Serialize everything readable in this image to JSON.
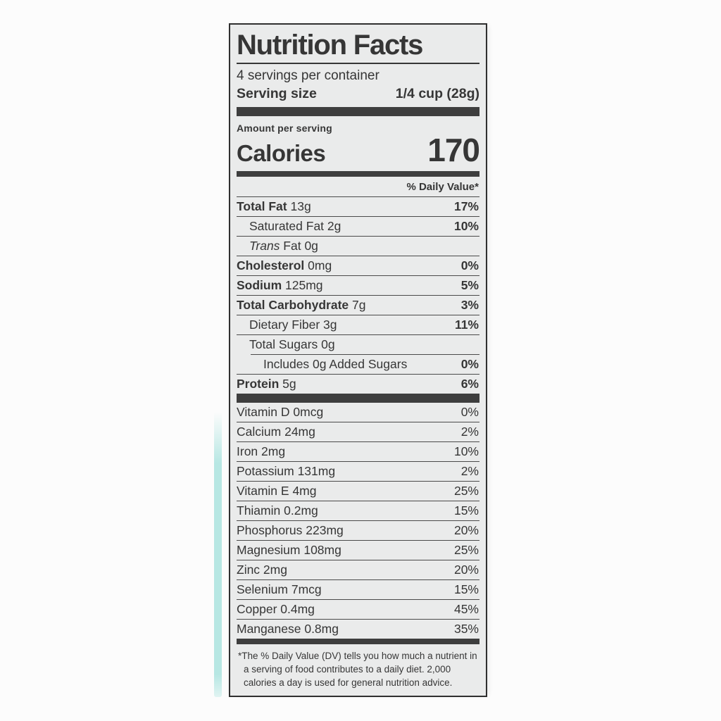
{
  "colors": {
    "page_background": "#fcfcfc",
    "label_background": "#eaebeb",
    "ink": "#363636",
    "rule": "#4a4a4a",
    "package_edge_teal": "#b7e7e3"
  },
  "label": {
    "title": "Nutrition Facts",
    "servings_per_container": "4 servings per container",
    "serving_size": {
      "label": "Serving size",
      "value": "1/4 cup (28g)"
    },
    "amount_per_serving": "Amount per serving",
    "calories": {
      "label": "Calories",
      "value": "170"
    },
    "daily_value_header": "% Daily Value*",
    "nutrients": [
      {
        "name": "Total Fat",
        "amount": "13g",
        "dv": "17%",
        "bold": true,
        "indent": 0
      },
      {
        "name": "Saturated Fat",
        "amount": "2g",
        "dv": "10%",
        "indent": 1
      },
      {
        "name": "Trans",
        "amount": "Fat 0g",
        "dv": "",
        "italic": true,
        "indent": 1
      },
      {
        "name": "Cholesterol",
        "amount": "0mg",
        "dv": "0%",
        "bold": true,
        "indent": 0
      },
      {
        "name": "Sodium",
        "amount": "125mg",
        "dv": "5%",
        "bold": true,
        "indent": 0
      },
      {
        "name": "Total Carbohydrate",
        "amount": "7g",
        "dv": "3%",
        "bold": true,
        "indent": 0
      },
      {
        "name": "Dietary Fiber",
        "amount": "3g",
        "dv": "11%",
        "indent": 1
      },
      {
        "name": "Total Sugars",
        "amount": "0g",
        "dv": "",
        "indent": 1
      },
      {
        "name": "Includes 0g Added Sugars",
        "amount": "",
        "dv": "0%",
        "indent": 2
      },
      {
        "name": "Protein",
        "amount": "5g",
        "dv": "6%",
        "bold": true,
        "indent": 0
      }
    ],
    "micronutrients": [
      {
        "name": "Vitamin D",
        "amount": "0mcg",
        "dv": "0%"
      },
      {
        "name": "Calcium",
        "amount": "24mg",
        "dv": "2%"
      },
      {
        "name": "Iron",
        "amount": "2mg",
        "dv": "10%"
      },
      {
        "name": "Potassium",
        "amount": "131mg",
        "dv": "2%"
      },
      {
        "name": "Vitamin E",
        "amount": "4mg",
        "dv": "25%"
      },
      {
        "name": "Thiamin",
        "amount": "0.2mg",
        "dv": "15%"
      },
      {
        "name": "Phosphorus",
        "amount": "223mg",
        "dv": "20%"
      },
      {
        "name": "Magnesium",
        "amount": "108mg",
        "dv": "25%"
      },
      {
        "name": "Zinc",
        "amount": "2mg",
        "dv": "20%"
      },
      {
        "name": "Selenium",
        "amount": "7mcg",
        "dv": "15%"
      },
      {
        "name": "Copper",
        "amount": "0.4mg",
        "dv": "45%"
      },
      {
        "name": "Manganese",
        "amount": "0.8mg",
        "dv": "35%"
      }
    ],
    "footnote": "*The % Daily Value (DV) tells you how much a nutrient in a serving of food contributes to a daily diet. 2,000 calories a day is used for general nutrition advice."
  }
}
